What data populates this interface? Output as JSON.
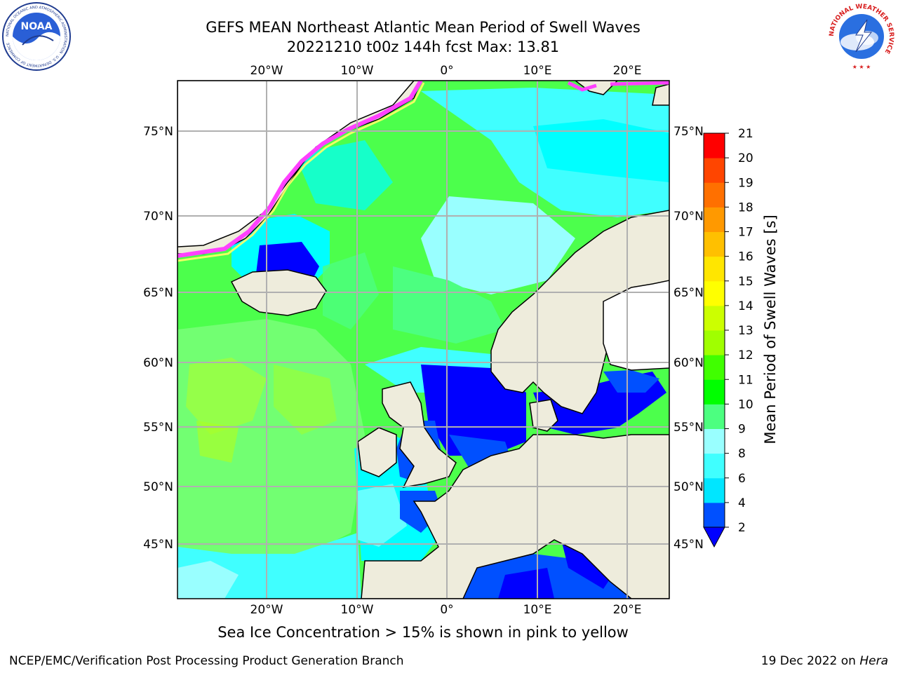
{
  "header": {
    "title_line1": "GEFS MEAN Northeast Atlantic Mean Period of Swell Waves",
    "title_line2": "20221210 t00z 144h fcst   Max: 13.81"
  },
  "logos": {
    "left": "noaa-logo",
    "left_text": "NOAA",
    "left_ring": "NATIONAL OCEANIC AND ATMOSPHERIC ADMINISTRATION · U.S. DEPARTMENT OF COMMERCE",
    "right": "national-weather-service-logo",
    "right_ring": "NATIONAL WEATHER SERVICE"
  },
  "map": {
    "lon_ticks": [
      "20°W",
      "10°W",
      "0°",
      "10°E",
      "20°E"
    ],
    "lat_ticks": [
      "75°N",
      "70°N",
      "65°N",
      "60°N",
      "55°N",
      "50°N",
      "45°N"
    ],
    "colors": {
      "land": "#eeecdc",
      "ocean_base": "#4cff4c",
      "grid": "#b0b0b0"
    }
  },
  "colorbar": {
    "label": "Mean Period of Swell Waves [s]",
    "ticks": [
      "2",
      "4",
      "6",
      "8",
      "9",
      "10",
      "11",
      "12",
      "13",
      "14",
      "15",
      "16",
      "17",
      "18",
      "19",
      "20",
      "21"
    ],
    "colors": [
      "#0050ff",
      "#00e6ff",
      "#40ffff",
      "#99ffff",
      "#4cff80",
      "#00ff00",
      "#40ff00",
      "#a0ff00",
      "#ccff00",
      "#ffff00",
      "#ffe600",
      "#ffc000",
      "#ff9900",
      "#ff7000",
      "#ff4500",
      "#ff0000"
    ],
    "under_color": "#0000ff"
  },
  "note": "Sea Ice Concentration > 15% is shown in pink to yellow",
  "footer": {
    "left": "NCEP/EMC/Verification Post Processing Product Generation Branch",
    "right_prefix": "19 Dec 2022 on",
    "right_host": "Hera"
  }
}
